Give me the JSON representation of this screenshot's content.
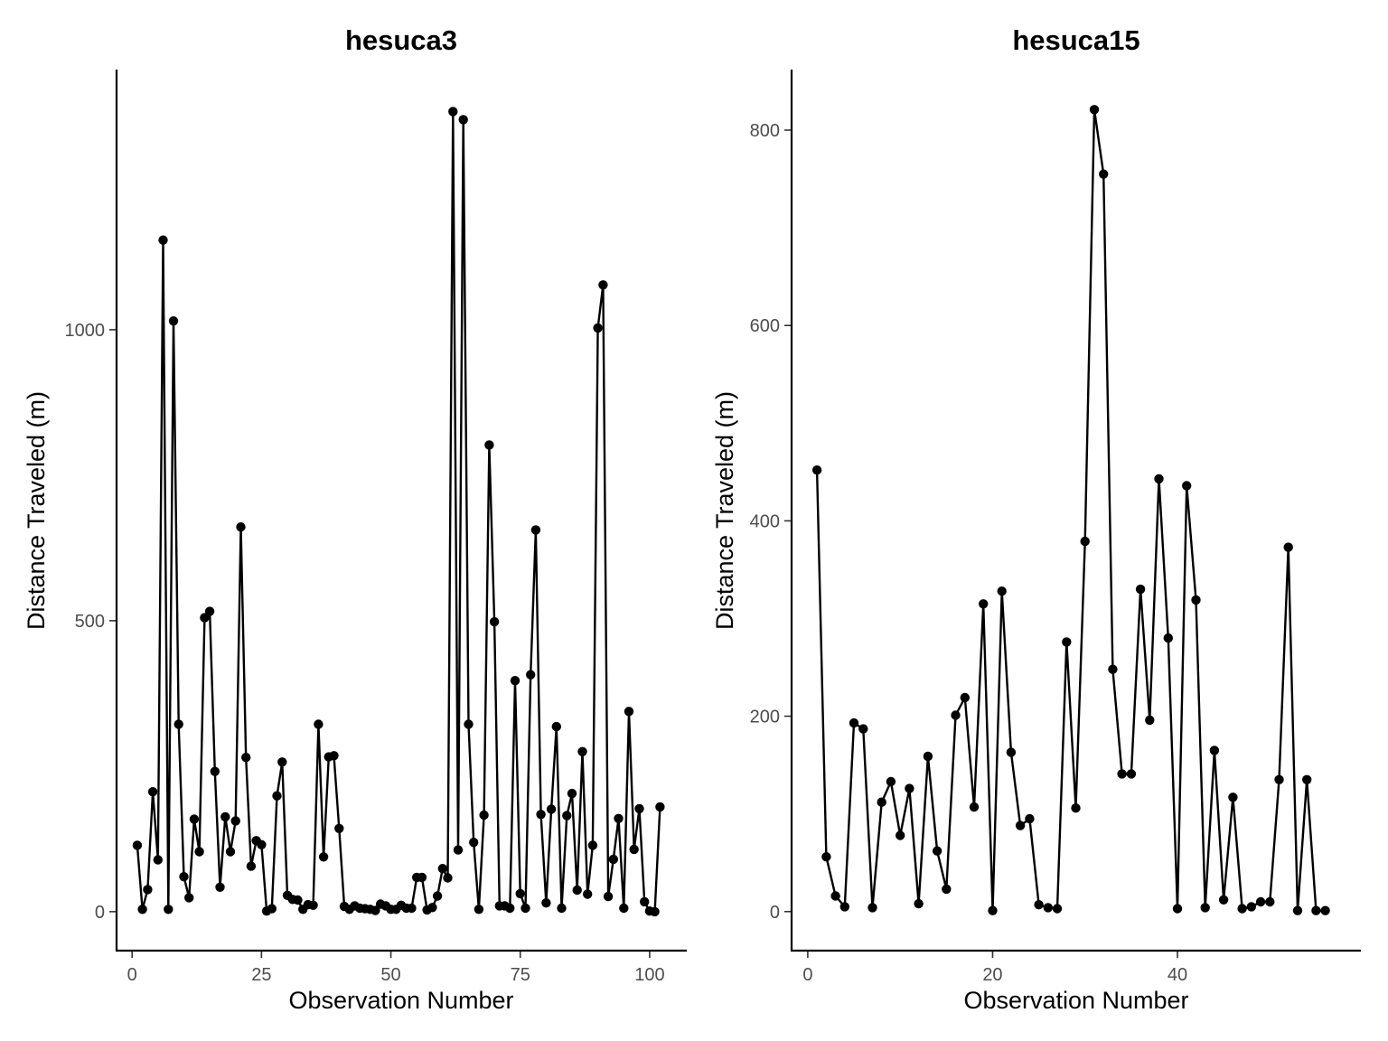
{
  "chart_data": [
    {
      "type": "line",
      "title": "hesuca3",
      "xlabel": "Observation Number",
      "ylabel": "Distance Traveled (m)",
      "xlim": [
        -3,
        107
      ],
      "ylim": [
        -67,
        1447
      ],
      "x_ticks": [
        0,
        25,
        50,
        75,
        100
      ],
      "x_tick_labels": [
        "0",
        "25",
        "50",
        "75",
        "100"
      ],
      "y_ticks": [
        0,
        500,
        1000
      ],
      "y_tick_labels": [
        "0",
        "500",
        "1000"
      ],
      "grid": false,
      "legend": "none",
      "color": "#000000",
      "x": [
        1,
        2,
        3,
        4,
        5,
        6,
        7,
        8,
        9,
        10,
        11,
        12,
        13,
        14,
        15,
        16,
        17,
        18,
        19,
        20,
        21,
        22,
        23,
        24,
        25,
        26,
        27,
        28,
        29,
        30,
        31,
        32,
        33,
        34,
        35,
        36,
        37,
        38,
        39,
        40,
        41,
        42,
        43,
        44,
        45,
        46,
        47,
        48,
        49,
        50,
        51,
        52,
        53,
        54,
        55,
        56,
        57,
        58,
        59,
        60,
        61,
        62,
        63,
        64,
        65,
        66,
        67,
        68,
        69,
        70,
        71,
        72,
        73,
        74,
        75,
        76,
        77,
        78,
        79,
        80,
        81,
        82,
        83,
        84,
        85,
        86,
        87,
        88,
        89,
        90,
        91,
        92,
        93,
        94,
        95,
        96,
        97,
        98,
        99,
        100,
        101,
        102
      ],
      "y": [
        114,
        4,
        38,
        206,
        89,
        1154,
        4,
        1015,
        322,
        60,
        24,
        159,
        103,
        505,
        516,
        241,
        42,
        163,
        103,
        156,
        661,
        265,
        78,
        122,
        115,
        1,
        5,
        199,
        257,
        28,
        21,
        20,
        4,
        12,
        11,
        322,
        94,
        266,
        268,
        143,
        9,
        4,
        10,
        6,
        5,
        4,
        2,
        13,
        10,
        4,
        4,
        11,
        6,
        6,
        59,
        59,
        3,
        7,
        27,
        74,
        58,
        1375,
        106,
        1361,
        322,
        119,
        4,
        166,
        802,
        498,
        10,
        10,
        6,
        397,
        31,
        6,
        407,
        656,
        167,
        15,
        176,
        318,
        6,
        165,
        203,
        37,
        275,
        30,
        114,
        1003,
        1077,
        26,
        90,
        160,
        6,
        344,
        107,
        177,
        17,
        1,
        0,
        180
      ]
    },
    {
      "type": "line",
      "title": "hesuca15",
      "xlabel": "Observation Number",
      "ylabel": "Distance Traveled (m)",
      "xlim": [
        -1.75,
        59.75
      ],
      "ylim": [
        -40,
        862
      ],
      "x_ticks": [
        0,
        20,
        40
      ],
      "x_tick_labels": [
        "0",
        "20",
        "40"
      ],
      "y_ticks": [
        0,
        200,
        400,
        600,
        800
      ],
      "y_tick_labels": [
        "0",
        "200",
        "400",
        "600",
        "800"
      ],
      "grid": false,
      "legend": "none",
      "color": "#000000",
      "x": [
        1,
        2,
        3,
        4,
        5,
        6,
        7,
        8,
        9,
        10,
        11,
        12,
        13,
        14,
        15,
        16,
        17,
        18,
        19,
        20,
        21,
        22,
        23,
        24,
        25,
        26,
        27,
        28,
        29,
        30,
        31,
        32,
        33,
        34,
        35,
        36,
        37,
        38,
        39,
        40,
        41,
        42,
        43,
        44,
        45,
        46,
        47,
        48,
        49,
        50,
        51,
        52,
        53,
        54,
        55,
        56
      ],
      "y": [
        452,
        56,
        16,
        5,
        193,
        187,
        4,
        112,
        133,
        78,
        126,
        8,
        159,
        62,
        23,
        201,
        219,
        107,
        315,
        1,
        328,
        163,
        88,
        95,
        7,
        4,
        3,
        276,
        106,
        379,
        821,
        755,
        248,
        141,
        141,
        330,
        196,
        443,
        280,
        3,
        436,
        319,
        4,
        165,
        12,
        117,
        3,
        5,
        10,
        10,
        135,
        373,
        1,
        135,
        1,
        1
      ]
    }
  ]
}
